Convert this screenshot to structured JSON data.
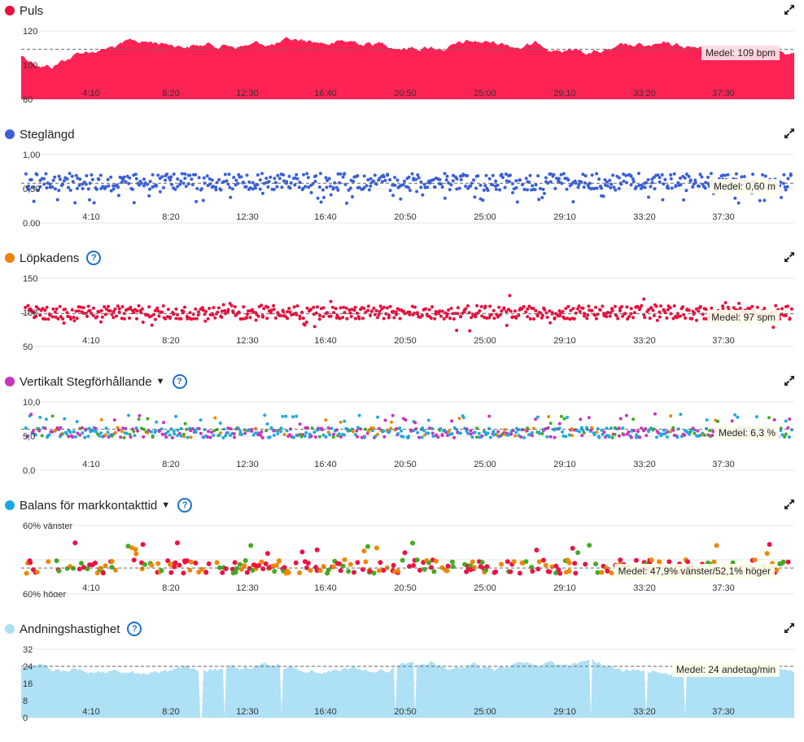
{
  "colors": {
    "heart": "#ff2255",
    "stride": "#3a5fd8",
    "cadence": "#f0a020",
    "cadence_point": "#e8103c",
    "vertical": "#cc33bb",
    "balance": "#18a8e0",
    "breath": "#aee0f6",
    "help": "#1f6fc8",
    "ratio_blue": "#22aadd",
    "ratio_green": "#44aa22",
    "ratio_orange": "#ee8800",
    "ratio_magenta": "#cc33bb",
    "ratio_red": "#ee1144"
  },
  "icons": {
    "expand": "expand-arrows-icon",
    "help": "question-circle-icon",
    "caret": "caret-down-icon"
  },
  "x_ticks": [
    "4:10",
    "8:20",
    "12:30",
    "16:40",
    "20:50",
    "25:00",
    "29:10",
    "33:20",
    "37:30"
  ],
  "panels": [
    {
      "id": "puls",
      "title": "Puls",
      "dot_color": "#e8103c",
      "has_help": false,
      "has_caret": false,
      "y_labels": [
        "120",
        "100",
        "80"
      ],
      "avg": "Medel: 109 bpm"
    },
    {
      "id": "steg",
      "title": "Steglängd",
      "dot_color": "#3a5fd8",
      "has_help": false,
      "has_caret": false,
      "y_labels": [
        "1,00",
        "0,50",
        "0,00"
      ],
      "avg": "Medel: 0,60 m"
    },
    {
      "id": "kadens",
      "title": "Löpkadens",
      "dot_color": "#f08000",
      "has_help": true,
      "has_caret": false,
      "y_labels": [
        "150",
        "100",
        "50"
      ],
      "avg": "Medel: 97 spm"
    },
    {
      "id": "vert",
      "title": "Vertikalt Stegförhållande",
      "dot_color": "#cc33bb",
      "has_help": true,
      "has_caret": true,
      "y_labels": [
        "10,0",
        "5,0",
        "0,0"
      ],
      "avg": "Medel: 6,3 %"
    },
    {
      "id": "bal",
      "title": "Balans för markkontakttid",
      "dot_color": "#18a8e0",
      "has_help": true,
      "has_caret": true,
      "y_labels": [
        "60% vänster",
        "",
        "60% höger"
      ],
      "avg": "Medel: 47,9% vänster/52,1% höger"
    },
    {
      "id": "andn",
      "title": "Andningshastighet",
      "dot_color": "#aee0f6",
      "has_help": true,
      "has_caret": false,
      "y_labels": [
        "32",
        "24",
        "16",
        "8",
        "0"
      ],
      "avg": "Medel: 24 andetag/min"
    }
  ]
}
